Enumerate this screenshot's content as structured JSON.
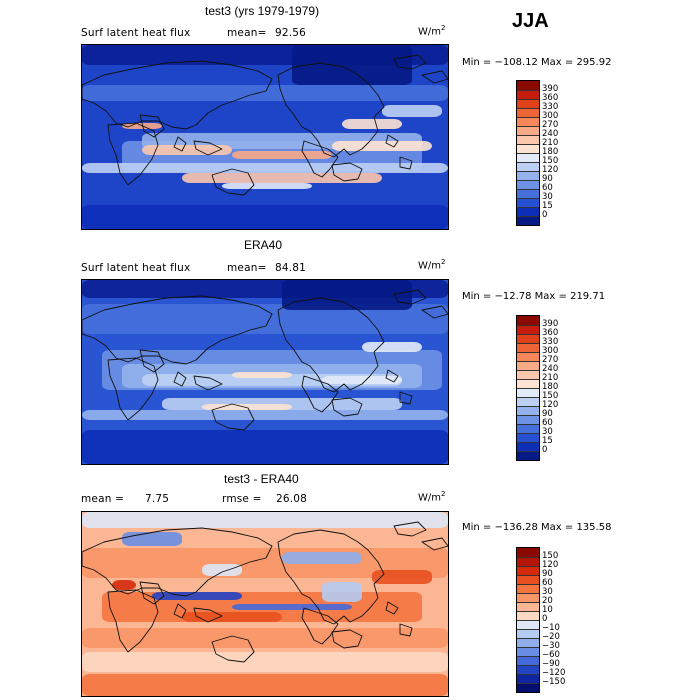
{
  "season": "JJA",
  "panels": [
    {
      "title": "test3 (yrs 1979-1979)",
      "left_label": "Surf latent heat flux",
      "stat_label": "mean=",
      "stat_value": "92.56",
      "stat2_label": "",
      "stat2_value": "",
      "unit_base": "W/m",
      "unit_exp": "2",
      "minmax": "Min = −108.12  Max = 295.92",
      "type": "abs",
      "colorbar": {
        "ticks": [
          "390",
          "360",
          "330",
          "300",
          "270",
          "240",
          "210",
          "180",
          "150",
          "120",
          "90",
          "60",
          "30",
          "15",
          "0"
        ],
        "colors": [
          "#8b0a00",
          "#c61c0c",
          "#e0401a",
          "#ee6535",
          "#f5875a",
          "#f9aa86",
          "#fcc8ad",
          "#fde3d2",
          "#e3ebf8",
          "#bcd0f3",
          "#94b2ec",
          "#6d91e4",
          "#4670dc",
          "#2650d4",
          "#0d2fb8",
          "#051a85"
        ]
      }
    },
    {
      "title": "ERA40",
      "left_label": "Surf latent heat flux",
      "stat_label": "mean=",
      "stat_value": "84.81",
      "stat2_label": "",
      "stat2_value": "",
      "unit_base": "W/m",
      "unit_exp": "2",
      "minmax": "Min = −12.78  Max = 219.71",
      "type": "abs",
      "colorbar": {
        "ticks": [
          "390",
          "360",
          "330",
          "300",
          "270",
          "240",
          "210",
          "180",
          "150",
          "120",
          "90",
          "60",
          "30",
          "15",
          "0"
        ],
        "colors": [
          "#8b0a00",
          "#c61c0c",
          "#e0401a",
          "#ee6535",
          "#f5875a",
          "#f9aa86",
          "#fcc8ad",
          "#fde3d2",
          "#e3ebf8",
          "#bcd0f3",
          "#94b2ec",
          "#6d91e4",
          "#4670dc",
          "#2650d4",
          "#0d2fb8",
          "#051a85"
        ]
      }
    },
    {
      "title": "test3 - ERA40",
      "left_label": "mean =",
      "stat_label": "",
      "stat_value": "7.75",
      "stat2_label": "rmse =",
      "stat2_value": "26.08",
      "unit_base": "W/m",
      "unit_exp": "2",
      "minmax": "Min = −136.28  Max = 135.58",
      "type": "diff",
      "colorbar": {
        "ticks": [
          "150",
          "120",
          "90",
          "60",
          "30",
          "20",
          "10",
          "0",
          "−10",
          "−20",
          "−30",
          "−60",
          "−90",
          "−120",
          "−150"
        ],
        "colors": [
          "#8b0a00",
          "#b51400",
          "#d42a0a",
          "#e8501f",
          "#f47440",
          "#f89566",
          "#fbb794",
          "#fdd8c3",
          "#dde7f6",
          "#b6cbf2",
          "#8faeea",
          "#6a8ee3",
          "#4569da",
          "#2244c4",
          "#0e25a0",
          "#040e6e"
        ]
      }
    }
  ]
}
